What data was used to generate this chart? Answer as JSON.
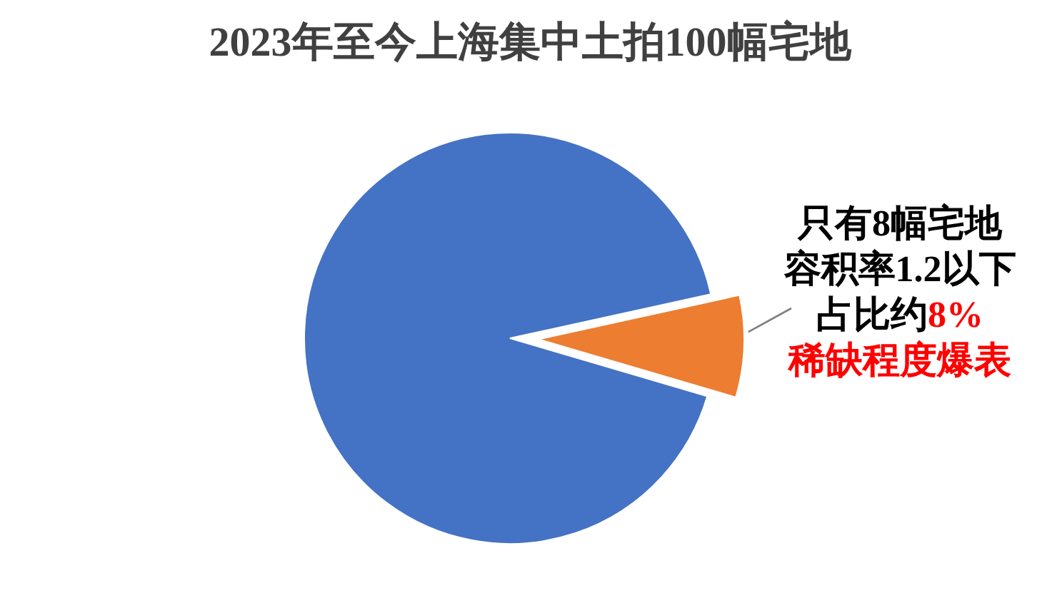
{
  "chart_data": {
    "type": "pie",
    "title": "2023年至今上海集中土拍100幅宅地",
    "categories": [
      null,
      null
    ],
    "values": [
      92,
      8
    ],
    "colors": [
      "#4472c4",
      "#ed7d31"
    ],
    "annotations": [
      "只有8幅宅地",
      "容积率1.2以下",
      "占比约",
      "8%",
      "稀缺程度爆表"
    ]
  }
}
